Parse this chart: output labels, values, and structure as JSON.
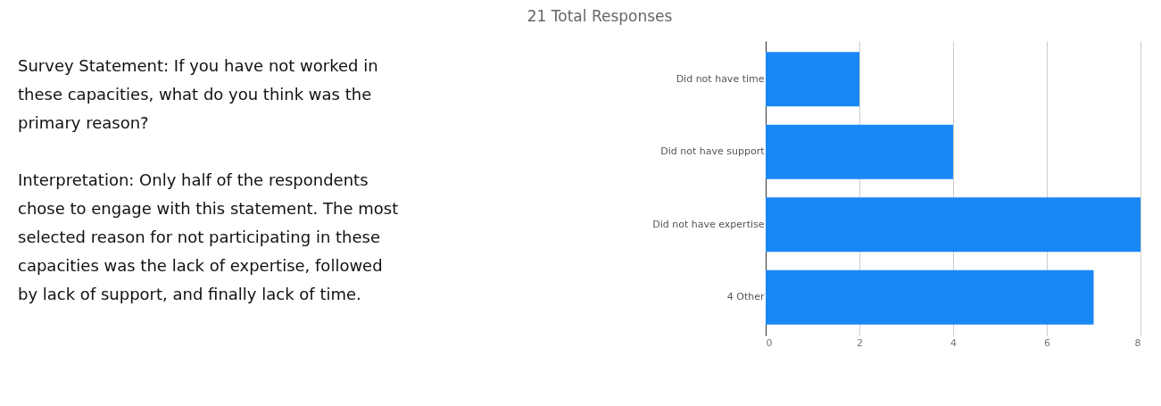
{
  "chart_data": {
    "type": "bar",
    "orientation": "horizontal",
    "title": "21 Total Responses",
    "categories": [
      "Did not have time",
      "Did not have support",
      "Did not have expertise",
      "4 Other"
    ],
    "values": [
      2,
      4,
      8,
      7
    ],
    "color": "#1a87f7",
    "xlim": [
      0,
      8
    ],
    "xticks": [
      0,
      2,
      4,
      6,
      8
    ],
    "grid": "x",
    "annotations": [
      "Survey Statement: If you have not worked in these capacities, what do you think was the primary reason?",
      "Interpretation: Only half of the respondents chose to engage with this statement. The most selected reason for not participating in these capacities was the lack of expertise, followed by lack of support, and finally lack of time."
    ]
  }
}
